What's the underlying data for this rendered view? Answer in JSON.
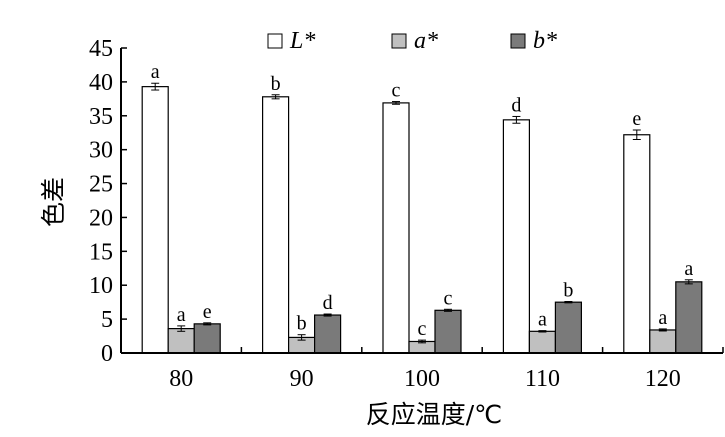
{
  "chart_data": {
    "type": "bar",
    "title": "",
    "xlabel": "反应温度/℃",
    "ylabel": "色差",
    "categories": [
      "80",
      "90",
      "100",
      "110",
      "120"
    ],
    "ylim": [
      0,
      45
    ],
    "yticks": [
      0,
      5,
      10,
      15,
      20,
      25,
      30,
      35,
      40,
      45
    ],
    "grid": false,
    "legend_position": "top",
    "series": [
      {
        "name": "L*",
        "color": "#ffffff",
        "values": [
          39.3,
          37.8,
          36.9,
          34.4,
          32.2
        ],
        "errors": [
          0.5,
          0.3,
          0.2,
          0.5,
          0.7
        ],
        "labels": [
          "a",
          "b",
          "c",
          "d",
          "e"
        ]
      },
      {
        "name": "a*",
        "color": "#c0c0c0",
        "values": [
          3.6,
          2.3,
          1.7,
          3.2,
          3.4
        ],
        "errors": [
          0.4,
          0.4,
          0.2,
          0.1,
          0.15
        ],
        "labels": [
          "a",
          "b",
          "c",
          "a",
          "a"
        ]
      },
      {
        "name": "b*",
        "color": "#7a7a7a",
        "values": [
          4.3,
          5.6,
          6.3,
          7.5,
          10.5
        ],
        "errors": [
          0.15,
          0.15,
          0.15,
          0.1,
          0.3
        ],
        "labels": [
          "e",
          "d",
          "c",
          "b",
          "a"
        ]
      }
    ]
  }
}
